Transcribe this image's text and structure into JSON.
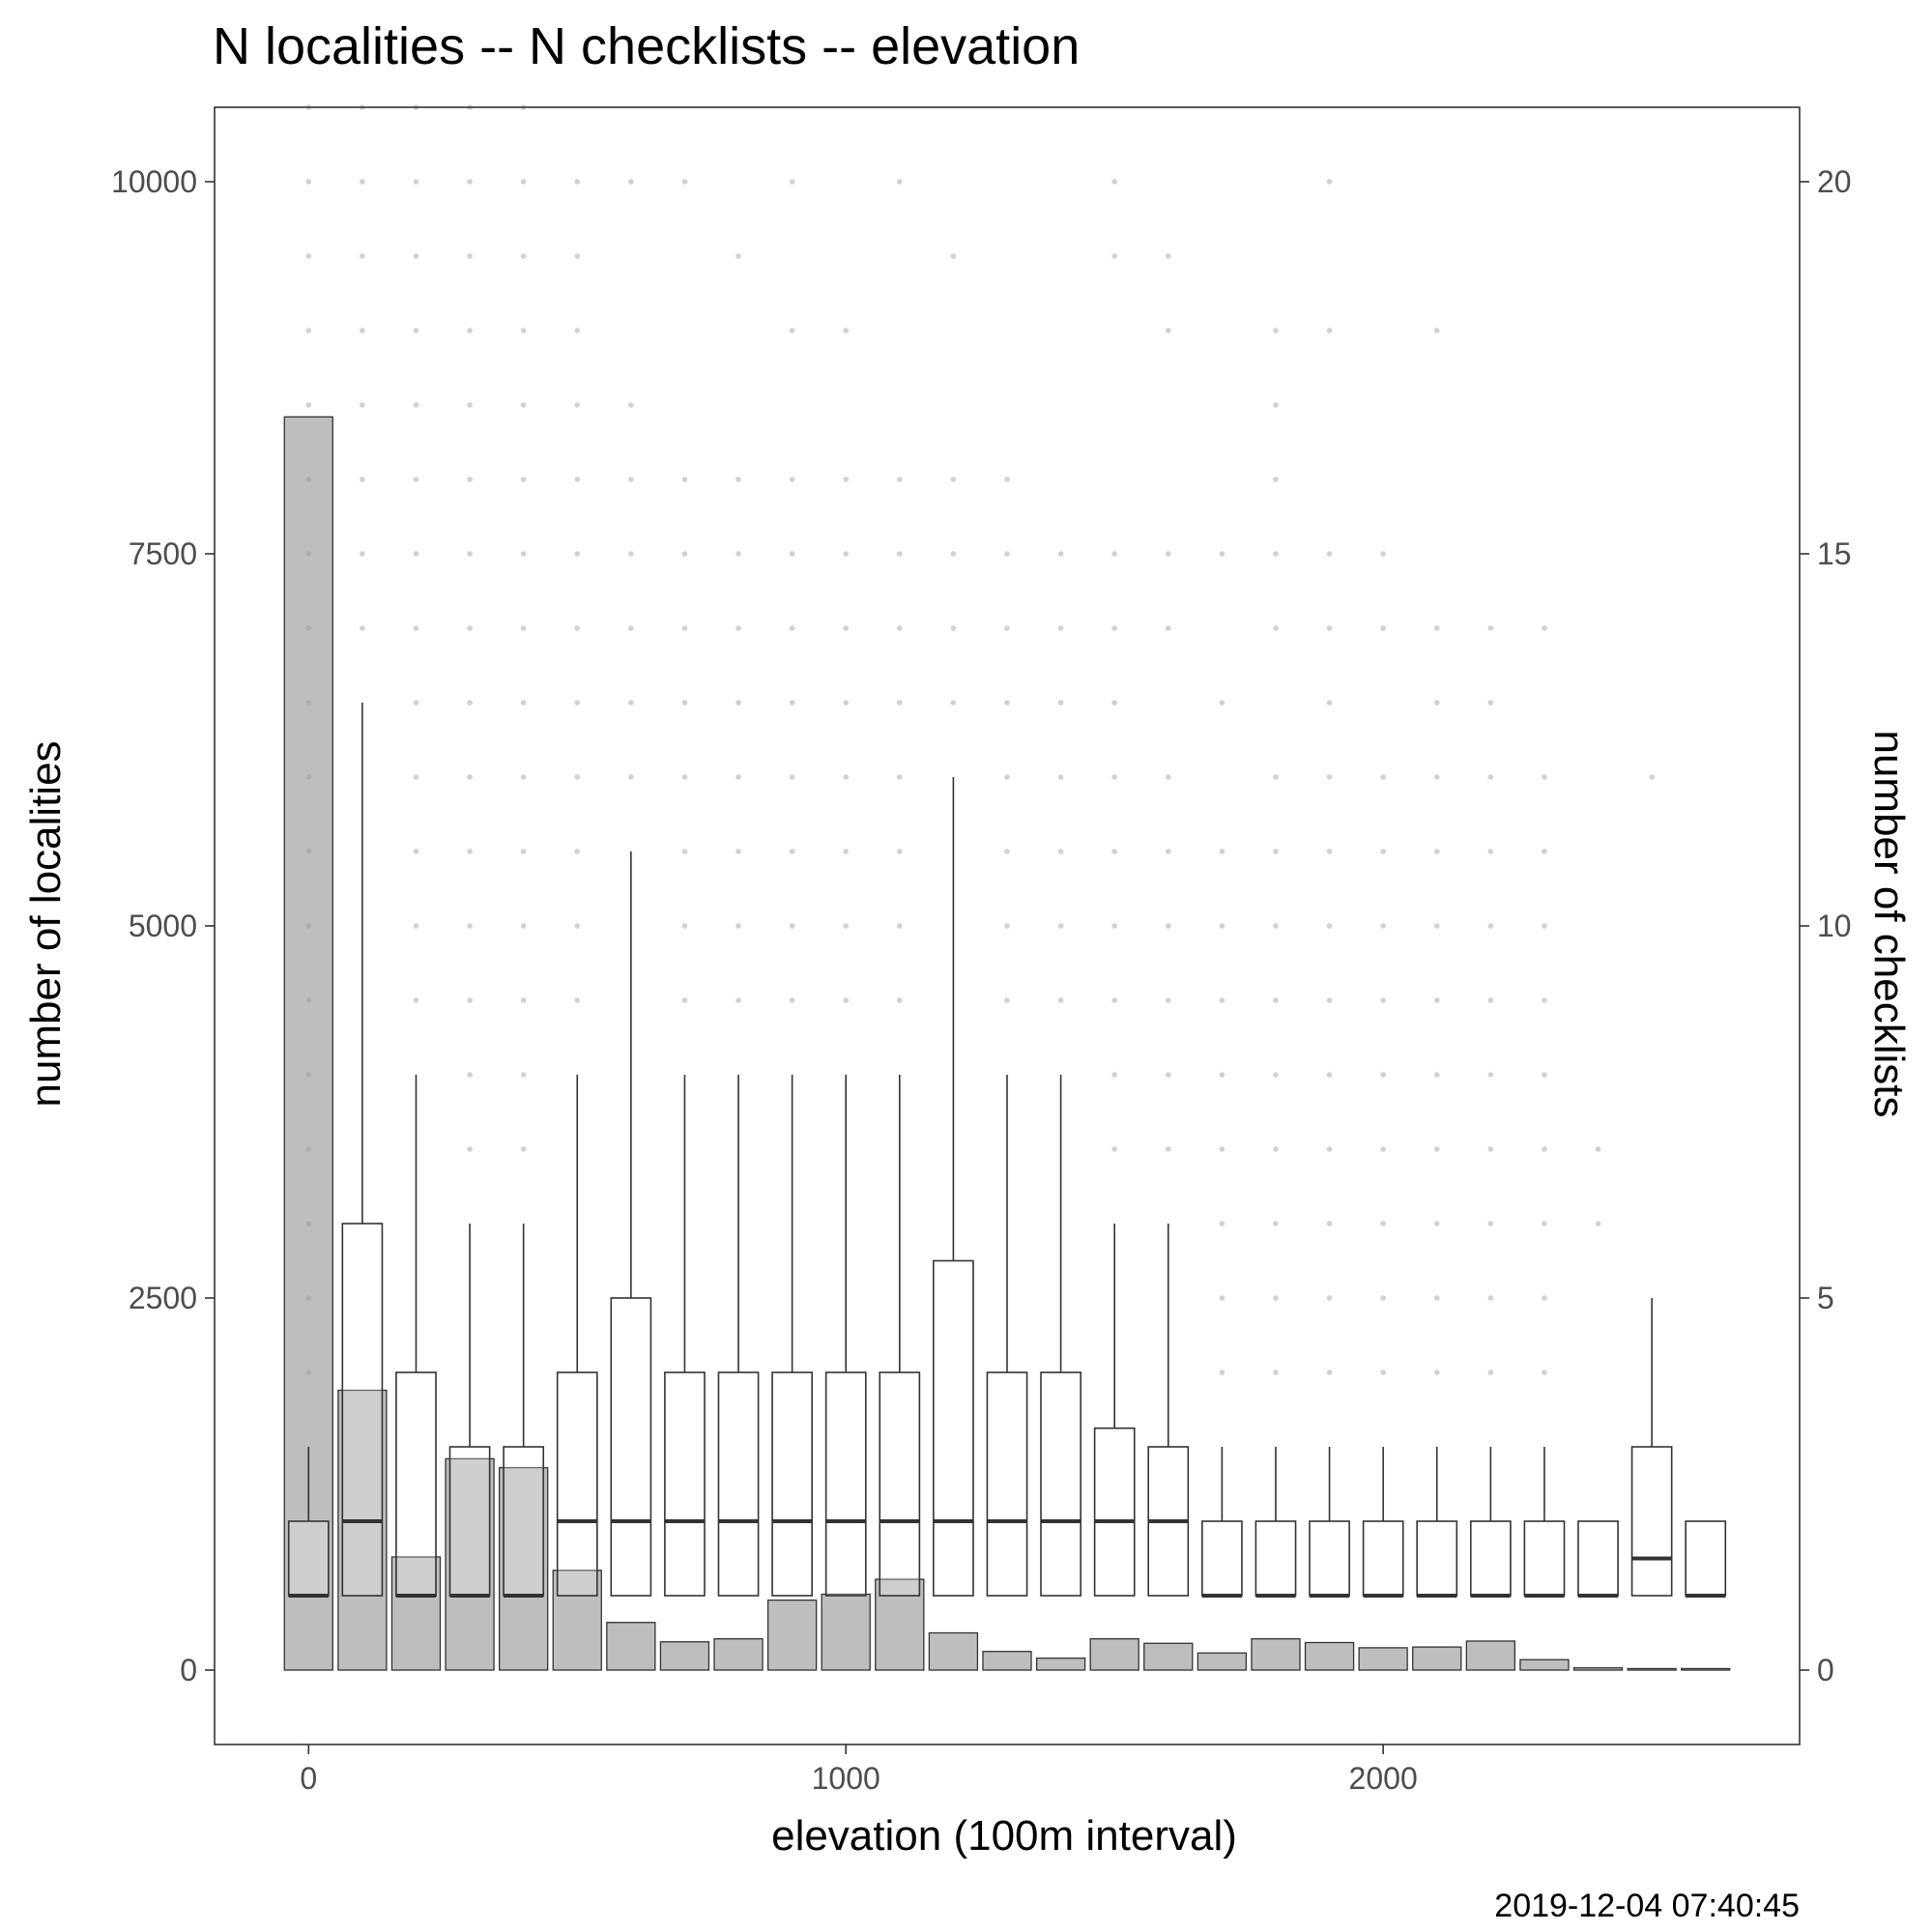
{
  "chart_data": {
    "type": "bar+boxplot",
    "title": "N localities -- N checklists -- elevation",
    "xlabel": "elevation (100m interval)",
    "ylabel_left": "number of localities",
    "ylabel_right": "number of checklists",
    "timestamp": "2019-12-04 07:40:45",
    "xlim": [
      -175,
      2775
    ],
    "ylim_left": [
      -500,
      10500
    ],
    "ylim_right": [
      -1,
      21
    ],
    "x_ticks": [
      0,
      1000,
      2000
    ],
    "y_left_ticks": [
      0,
      2500,
      5000,
      7500,
      10000
    ],
    "y_right_ticks": [
      0,
      5,
      10,
      15,
      20
    ],
    "grid": false,
    "colors": {
      "bar_fill": "#bebebe",
      "box_fill": "#ffffff",
      "line": "#333333",
      "outlier": "#9a9a9a",
      "panel_border": "#333333"
    },
    "elevations": [
      0,
      100,
      200,
      300,
      400,
      500,
      600,
      700,
      800,
      900,
      1000,
      1100,
      1200,
      1300,
      1400,
      1500,
      1600,
      1700,
      1800,
      1900,
      2000,
      2100,
      2200,
      2300,
      2400,
      2500,
      2600
    ],
    "localities": [
      8420,
      1880,
      760,
      1420,
      1360,
      670,
      320,
      190,
      210,
      470,
      510,
      610,
      250,
      125,
      80,
      210,
      180,
      115,
      210,
      185,
      150,
      155,
      195,
      70,
      15,
      10,
      10
    ],
    "checklists_boxplot": [
      {
        "x": 0,
        "min": 1,
        "q1": 1,
        "median": 1,
        "q3": 2,
        "max": 3
      },
      {
        "x": 100,
        "min": 1,
        "q1": 1,
        "median": 2,
        "q3": 6,
        "max": 13
      },
      {
        "x": 200,
        "min": 1,
        "q1": 1,
        "median": 1,
        "q3": 4,
        "max": 8
      },
      {
        "x": 300,
        "min": 1,
        "q1": 1,
        "median": 1,
        "q3": 3,
        "max": 6
      },
      {
        "x": 400,
        "min": 1,
        "q1": 1,
        "median": 1,
        "q3": 3,
        "max": 6
      },
      {
        "x": 500,
        "min": 1,
        "q1": 1,
        "median": 2,
        "q3": 4,
        "max": 8
      },
      {
        "x": 600,
        "min": 1,
        "q1": 1,
        "median": 2,
        "q3": 5,
        "max": 11
      },
      {
        "x": 700,
        "min": 1,
        "q1": 1,
        "median": 2,
        "q3": 4,
        "max": 8
      },
      {
        "x": 800,
        "min": 1,
        "q1": 1,
        "median": 2,
        "q3": 4,
        "max": 8
      },
      {
        "x": 900,
        "min": 1,
        "q1": 1,
        "median": 2,
        "q3": 4,
        "max": 8
      },
      {
        "x": 1000,
        "min": 1,
        "q1": 1,
        "median": 2,
        "q3": 4,
        "max": 8
      },
      {
        "x": 1100,
        "min": 1,
        "q1": 1,
        "median": 2,
        "q3": 4,
        "max": 8
      },
      {
        "x": 1200,
        "min": 1,
        "q1": 1,
        "median": 2,
        "q3": 5.5,
        "max": 12
      },
      {
        "x": 1300,
        "min": 1,
        "q1": 1,
        "median": 2,
        "q3": 4,
        "max": 8
      },
      {
        "x": 1400,
        "min": 1,
        "q1": 1,
        "median": 2,
        "q3": 4,
        "max": 8
      },
      {
        "x": 1500,
        "min": 1,
        "q1": 1,
        "median": 2,
        "q3": 3.25,
        "max": 6
      },
      {
        "x": 1600,
        "min": 1,
        "q1": 1,
        "median": 2,
        "q3": 3,
        "max": 6
      },
      {
        "x": 1700,
        "min": 1,
        "q1": 1,
        "median": 1,
        "q3": 2,
        "max": 3
      },
      {
        "x": 1800,
        "min": 1,
        "q1": 1,
        "median": 1,
        "q3": 2,
        "max": 3
      },
      {
        "x": 1900,
        "min": 1,
        "q1": 1,
        "median": 1,
        "q3": 2,
        "max": 3
      },
      {
        "x": 2000,
        "min": 1,
        "q1": 1,
        "median": 1,
        "q3": 2,
        "max": 3
      },
      {
        "x": 2100,
        "min": 1,
        "q1": 1,
        "median": 1,
        "q3": 2,
        "max": 3
      },
      {
        "x": 2200,
        "min": 1,
        "q1": 1,
        "median": 1,
        "q3": 2,
        "max": 3
      },
      {
        "x": 2300,
        "min": 1,
        "q1": 1,
        "median": 1,
        "q3": 2,
        "max": 3
      },
      {
        "x": 2400,
        "min": 1,
        "q1": 1,
        "median": 1,
        "q3": 2,
        "max": 2
      },
      {
        "x": 2500,
        "min": 1,
        "q1": 1,
        "median": 1.5,
        "q3": 3,
        "max": 5
      },
      {
        "x": 2600,
        "min": 1,
        "q1": 1,
        "median": 1,
        "q3": 2,
        "max": 2
      }
    ],
    "outliers": [
      {
        "x": 0,
        "values": [
          4,
          5,
          6,
          7,
          8,
          9,
          10,
          11,
          12,
          13,
          14,
          15,
          16,
          17,
          18,
          19,
          20,
          21
        ]
      },
      {
        "x": 100,
        "values": [
          14,
          15,
          16,
          17,
          18,
          19,
          20,
          21
        ]
      },
      {
        "x": 200,
        "values": [
          9,
          10,
          11,
          12,
          13,
          14,
          15,
          16,
          17,
          18,
          19,
          20,
          21
        ]
      },
      {
        "x": 300,
        "values": [
          7,
          8,
          9,
          10,
          11,
          12,
          13,
          14,
          15,
          16,
          17,
          18,
          19,
          20,
          21
        ]
      },
      {
        "x": 400,
        "values": [
          7,
          8,
          9,
          10,
          11,
          12,
          13,
          14,
          15,
          16,
          17,
          18,
          19,
          20,
          21
        ]
      },
      {
        "x": 500,
        "values": [
          9,
          10,
          11,
          12,
          13,
          14,
          15,
          16,
          17,
          18,
          19,
          20
        ]
      },
      {
        "x": 600,
        "values": [
          12,
          13,
          14,
          15,
          16,
          17,
          20
        ]
      },
      {
        "x": 700,
        "values": [
          9,
          10,
          11,
          12,
          13,
          14,
          15,
          16,
          20
        ]
      },
      {
        "x": 800,
        "values": [
          9,
          10,
          11,
          12,
          13,
          14,
          15,
          16,
          19
        ]
      },
      {
        "x": 900,
        "values": [
          9,
          10,
          11,
          12,
          13,
          14,
          15,
          16,
          18,
          20
        ]
      },
      {
        "x": 1000,
        "values": [
          9,
          10,
          11,
          12,
          13,
          14,
          15,
          16,
          18
        ]
      },
      {
        "x": 1100,
        "values": [
          9,
          10,
          11,
          12,
          13,
          14,
          15,
          16,
          20
        ]
      },
      {
        "x": 1200,
        "values": [
          13,
          14,
          15,
          16,
          19
        ]
      },
      {
        "x": 1300,
        "values": [
          9,
          10,
          11,
          12,
          13,
          14,
          15,
          16
        ]
      },
      {
        "x": 1400,
        "values": [
          9,
          10,
          11,
          12,
          13,
          14,
          15
        ]
      },
      {
        "x": 1500,
        "values": [
          7,
          8,
          9,
          10,
          11,
          12,
          13,
          14,
          15,
          19,
          20
        ]
      },
      {
        "x": 1600,
        "values": [
          7,
          8,
          9,
          10,
          11,
          12,
          14,
          15,
          18,
          19
        ]
      },
      {
        "x": 1700,
        "values": [
          4,
          5,
          6,
          7,
          8,
          9,
          10,
          11,
          13,
          15
        ]
      },
      {
        "x": 1800,
        "values": [
          4,
          5,
          6,
          7,
          8,
          9,
          10,
          11,
          12,
          14,
          15,
          16,
          17,
          18
        ]
      },
      {
        "x": 1900,
        "values": [
          4,
          5,
          6,
          7,
          8,
          9,
          10,
          11,
          12,
          13,
          14,
          15,
          18,
          20
        ]
      },
      {
        "x": 2000,
        "values": [
          4,
          5,
          6,
          7,
          8,
          9,
          10,
          11,
          12,
          14,
          15
        ]
      },
      {
        "x": 2100,
        "values": [
          4,
          5,
          6,
          7,
          8,
          9,
          10,
          11,
          12,
          13,
          14,
          18
        ]
      },
      {
        "x": 2200,
        "values": [
          4,
          5,
          6,
          7,
          8,
          9,
          10,
          11,
          12,
          13,
          14
        ]
      },
      {
        "x": 2300,
        "values": [
          4,
          5,
          6,
          7,
          8,
          9,
          10,
          11,
          12,
          14
        ]
      },
      {
        "x": 2400,
        "values": [
          6,
          7
        ]
      },
      {
        "x": 2500,
        "values": [
          12
        ]
      }
    ]
  }
}
